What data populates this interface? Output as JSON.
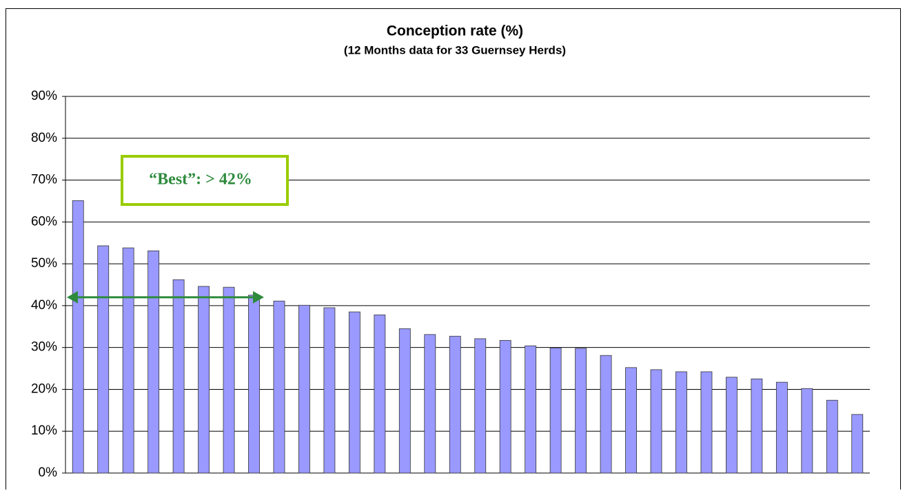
{
  "chart_data": {
    "type": "bar",
    "title": "Conception rate (%)",
    "subtitle": "(12 Months data for 33 Guernsey Herds)",
    "categories": [
      null,
      null,
      null,
      null,
      null,
      null,
      null,
      null,
      null,
      null,
      null,
      null,
      null,
      null,
      null,
      null,
      null,
      null,
      null,
      null,
      null,
      null,
      null,
      null,
      null,
      null,
      null,
      null,
      null,
      null,
      null,
      null
    ],
    "values": [
      65.1,
      54.3,
      53.8,
      53.1,
      46.2,
      44.6,
      44.4,
      42.5,
      41.1,
      40.1,
      39.5,
      38.5,
      37.8,
      34.5,
      33.1,
      32.7,
      32.1,
      31.7,
      30.4,
      29.9,
      29.8,
      28.1,
      25.2,
      24.7,
      24.2,
      24.2,
      22.9,
      22.5,
      21.7,
      20.2,
      17.4,
      14.0
    ],
    "color": "#9999ff",
    "ylim": [
      0,
      90
    ],
    "yticks": [
      {
        "value": 0,
        "label": "0%"
      },
      {
        "value": 10,
        "label": "10%"
      },
      {
        "value": 20,
        "label": "20%"
      },
      {
        "value": 30,
        "label": "30%"
      },
      {
        "value": 40,
        "label": "40%"
      },
      {
        "value": 50,
        "label": "50%"
      },
      {
        "value": 60,
        "label": "60%"
      },
      {
        "value": 70,
        "label": "70%"
      },
      {
        "value": 80,
        "label": "80%"
      },
      {
        "value": 90,
        "label": "90%"
      }
    ],
    "grid": true,
    "annotation": {
      "text": "“Best”: > 42%",
      "value": 42,
      "color": "#2e8b3d",
      "border_color": "#99cc00"
    }
  }
}
